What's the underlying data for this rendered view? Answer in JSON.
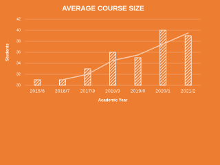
{
  "chart_data": {
    "type": "bar",
    "title": "AVERAGE COURSE SIZE",
    "y_label": "Students",
    "x_label": "Academic Year",
    "categories": [
      "2015/6",
      "2016/7",
      "2017/8",
      "2018/9",
      "2019/0",
      "2020/1",
      "2021/2"
    ],
    "series": [
      {
        "type": "bar",
        "color": "#ffffff",
        "values": [
          31,
          31,
          33,
          36,
          35,
          40,
          39
        ]
      },
      {
        "type": "line",
        "color": "#f8cbad",
        "values": [
          null,
          31,
          32,
          34.5,
          35.5,
          37.5,
          39.5
        ]
      }
    ],
    "ylim": [
      30,
      42
    ],
    "yticks": [
      30,
      32,
      34,
      36,
      38,
      40,
      42
    ],
    "grid": true
  }
}
